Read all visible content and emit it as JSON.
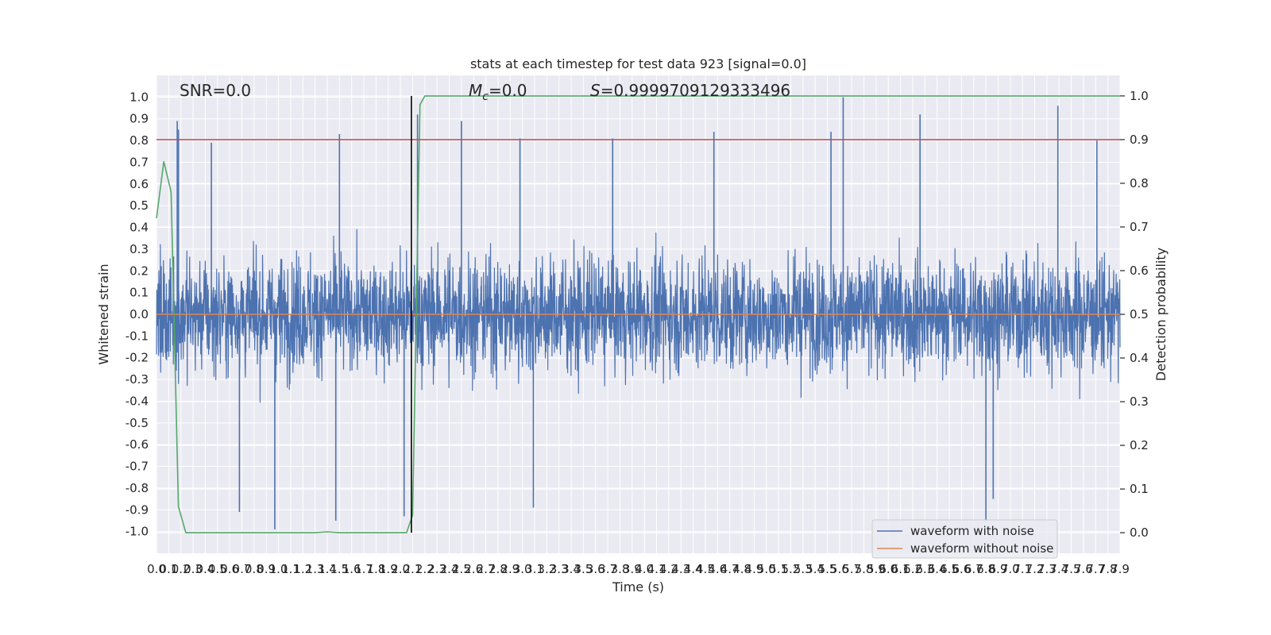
{
  "chart_data": {
    "type": "line",
    "title": "stats at each timestep for test data 923 [signal=0.0]",
    "xlabel": "Time (s)",
    "ylabel": "Whitened strain",
    "y2label": "Detection probability",
    "xlim": [
      0.0,
      7.9
    ],
    "ylim": [
      -1.1,
      1.1
    ],
    "y2lim": [
      -0.047,
      1.047
    ],
    "x_tick_step": 0.1,
    "y_ticks": [
      -1.0,
      -0.9,
      -0.8,
      -0.7,
      -0.6,
      -0.5,
      -0.4,
      -0.3,
      -0.2,
      -0.1,
      0.0,
      0.1,
      0.2,
      0.3,
      0.4,
      0.5,
      0.6,
      0.7,
      0.8,
      0.9,
      1.0
    ],
    "y2_ticks": [
      0.0,
      0.1,
      0.2,
      0.3,
      0.4,
      0.5,
      0.6,
      0.7,
      0.8,
      0.9,
      1.0
    ],
    "grid": true,
    "legend_position": "bottom-right",
    "annotations": {
      "snr": "SNR=0.0",
      "mc_symbol": "M",
      "mc_subscript": "c",
      "mc_value": "=0.0",
      "s_symbol": "S",
      "s_value": "=0.9999709129333496"
    },
    "series": [
      {
        "name": "waveform with noise",
        "color": "#4c72b0",
        "axis": "left",
        "envelope_description": "dense noise, mostly within -0.5..0.5, peaks to about ±1.0",
        "spikes": [
          {
            "x": 0.17,
            "y": 0.89
          },
          {
            "x": 0.18,
            "y": 0.85
          },
          {
            "x": 0.45,
            "y": 0.79
          },
          {
            "x": 1.5,
            "y": 0.83
          },
          {
            "x": 2.14,
            "y": 0.92
          },
          {
            "x": 2.5,
            "y": 0.89
          },
          {
            "x": 2.98,
            "y": 0.81
          },
          {
            "x": 3.74,
            "y": 0.81
          },
          {
            "x": 4.57,
            "y": 0.84
          },
          {
            "x": 5.53,
            "y": 0.84
          },
          {
            "x": 5.63,
            "y": 1.0
          },
          {
            "x": 6.26,
            "y": 0.92
          },
          {
            "x": 7.39,
            "y": 0.96
          },
          {
            "x": 7.71,
            "y": 0.8
          },
          {
            "x": 0.68,
            "y": -0.91
          },
          {
            "x": 0.97,
            "y": -0.99
          },
          {
            "x": 1.47,
            "y": -0.95
          },
          {
            "x": 2.03,
            "y": -0.93
          },
          {
            "x": 3.09,
            "y": -0.89
          },
          {
            "x": 6.8,
            "y": -0.95
          },
          {
            "x": 6.86,
            "y": -0.85
          }
        ]
      },
      {
        "name": "waveform without noise",
        "color": "#dd8452",
        "axis": "left",
        "x": [
          0.0,
          7.9
        ],
        "y": [
          0.0,
          0.0
        ]
      },
      {
        "name": "",
        "color": "#55a868",
        "axis": "right",
        "x": [
          0.0,
          0.06,
          0.12,
          0.18,
          0.24,
          1.3,
          1.4,
          1.5,
          2.05,
          2.1,
          2.16,
          2.2,
          7.9
        ],
        "y": [
          0.72,
          0.85,
          0.78,
          0.06,
          0.0,
          0.0,
          0.002,
          0.0,
          0.0,
          0.04,
          0.98,
          1.0,
          1.0
        ]
      },
      {
        "name": "",
        "color": "#c44e52",
        "axis": "right",
        "x": [
          0.0,
          7.9
        ],
        "y": [
          0.9,
          0.9
        ]
      }
    ],
    "vertical_lines": [
      {
        "x": 2.09,
        "y_from": 0.0,
        "y_to": 1.0,
        "color": "#000000",
        "axis": "right"
      }
    ]
  }
}
